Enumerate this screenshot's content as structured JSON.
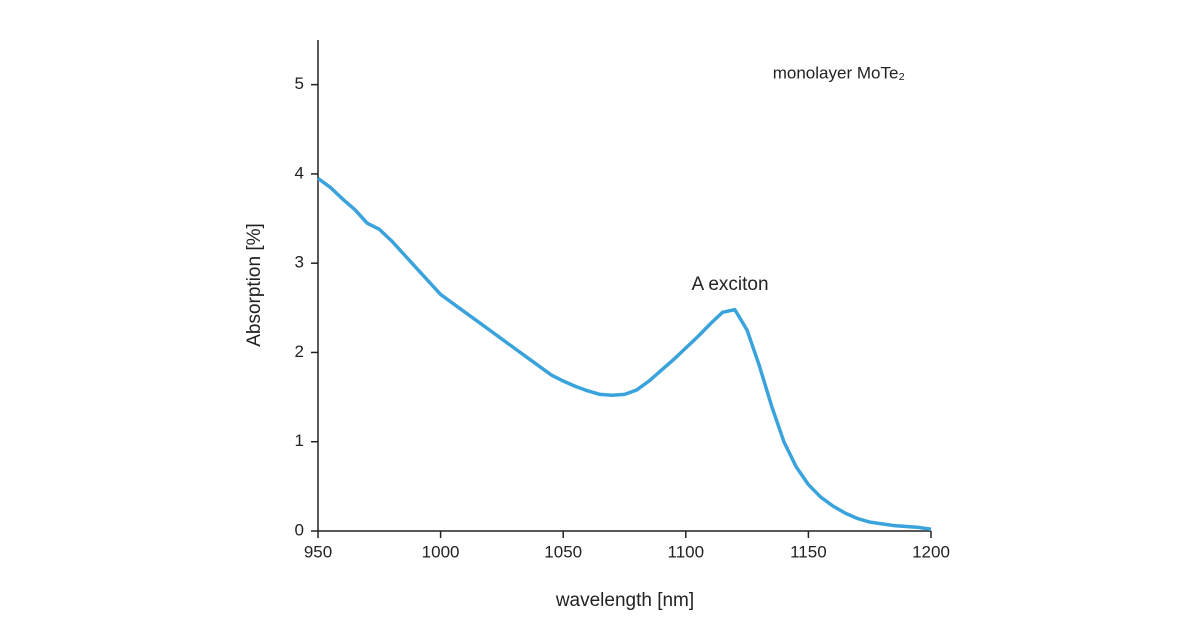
{
  "chart_data": {
    "type": "line",
    "xlabel": "wavelength [nm]",
    "ylabel": "Absorption [%]",
    "annotations": [
      "monolayer MoTe₂",
      "A exciton"
    ],
    "x": [
      950,
      955,
      960,
      965,
      970,
      975,
      980,
      985,
      990,
      995,
      1000,
      1005,
      1010,
      1015,
      1020,
      1025,
      1030,
      1035,
      1040,
      1045,
      1050,
      1055,
      1060,
      1065,
      1070,
      1075,
      1080,
      1085,
      1090,
      1095,
      1100,
      1105,
      1110,
      1115,
      1120,
      1125,
      1130,
      1135,
      1140,
      1145,
      1150,
      1155,
      1160,
      1165,
      1170,
      1175,
      1180,
      1185,
      1190,
      1195,
      1200
    ],
    "series": [
      {
        "name": "monolayer MoTe₂",
        "color": "#3aa3dc",
        "values": [
          3.95,
          3.85,
          3.72,
          3.6,
          3.45,
          3.38,
          3.25,
          3.1,
          2.95,
          2.8,
          2.65,
          2.55,
          2.45,
          2.35,
          2.25,
          2.15,
          2.05,
          1.95,
          1.85,
          1.75,
          1.68,
          1.62,
          1.57,
          1.53,
          1.52,
          1.53,
          1.58,
          1.68,
          1.8,
          1.92,
          2.05,
          2.18,
          2.32,
          2.45,
          2.48,
          2.25,
          1.85,
          1.4,
          1.0,
          0.72,
          0.52,
          0.38,
          0.28,
          0.2,
          0.14,
          0.1,
          0.08,
          0.06,
          0.05,
          0.04,
          0.02
        ]
      }
    ],
    "xlim": [
      950,
      1200
    ],
    "xticks": [
      950,
      1000,
      1050,
      1100,
      1150,
      1200
    ],
    "ylim": [
      0,
      5.5
    ],
    "yticks": [
      0,
      1,
      2,
      3,
      4,
      5
    ],
    "grid": false
  }
}
